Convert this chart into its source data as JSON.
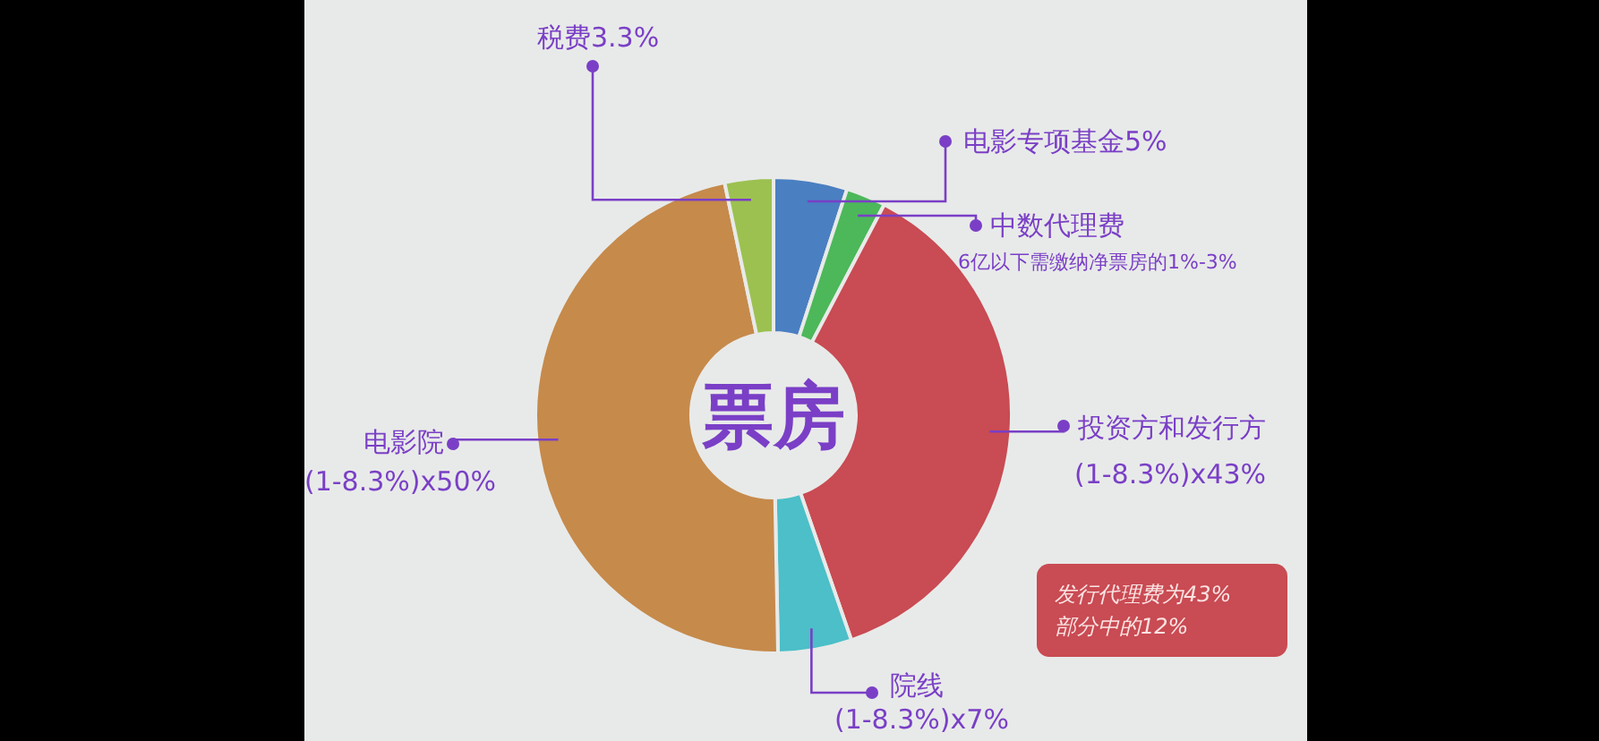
{
  "chart_data": {
    "type": "donut",
    "title": "票房",
    "categories": [
      "电影专项基金5%",
      "中数代理费",
      "投资方和发行方\n(1-8.3%)x43%",
      "院线\n(1-8.3%)x7%",
      "电影院\n(1-8.3%)x50%",
      "税费3.3%"
    ],
    "values": [
      5,
      2.7,
      37,
      5,
      47,
      3.3
    ],
    "colors": [
      "#4a7fc2",
      "#4cb85a",
      "#c94b53",
      "#4cbfc8",
      "#c68a4b",
      "#9cc150"
    ],
    "annotations": [
      "6亿以下需缴纳净票房的1%-3%",
      "发行代理费为43%\n部分中的12%"
    ]
  }
}
